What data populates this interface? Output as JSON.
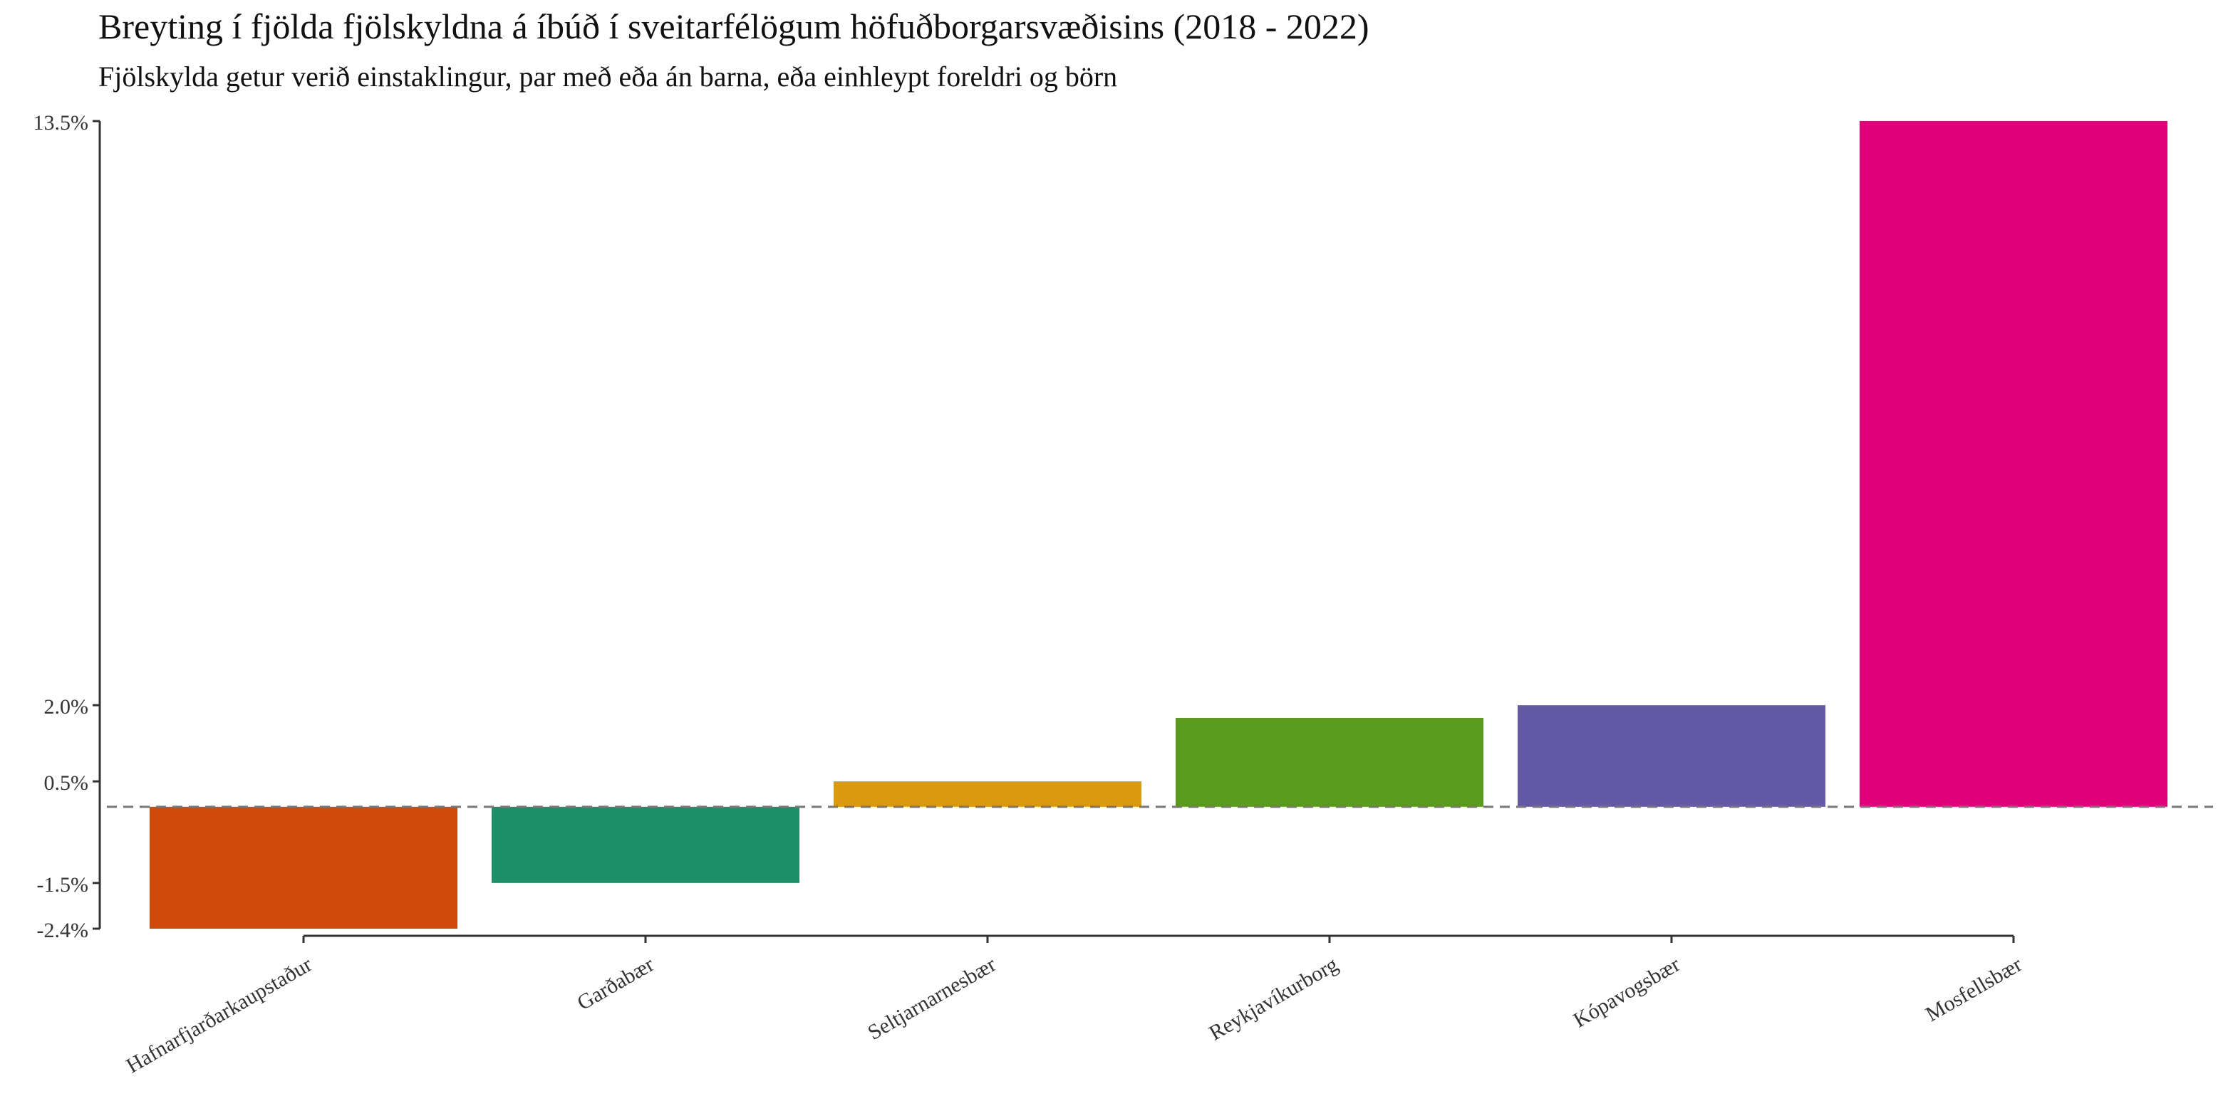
{
  "chart_data": {
    "type": "bar",
    "title": "Breyting í fjölda fjölskyldna á íbúð í sveitarfélögum höfuðborgarsvæðisins (2018 - 2022)",
    "subtitle": "Fjölskylda getur verið einstaklingur, par með eða án barna, eða einhleypt foreldri og börn",
    "xlabel": "",
    "ylabel": "",
    "categories": [
      "Hafnarfjarðarkaupstaður",
      "Garðabær",
      "Seltjarnarnesbær",
      "Reykjavíkurborg",
      "Kópavogsbær",
      "Mosfellsbær"
    ],
    "values": [
      -2.4,
      -1.5,
      0.5,
      1.75,
      2.0,
      13.5
    ],
    "colors": [
      "#D04A0B",
      "#1C8F68",
      "#DB9A0E",
      "#5A9A1D",
      "#6359A4",
      "#E0007A"
    ],
    "y_ticks": [
      -2.4,
      -1.5,
      0.5,
      2.0,
      13.5
    ],
    "y_tick_labels": [
      "-2.4%",
      "-1.5%",
      "0.5%",
      "2.0%",
      "13.5%"
    ],
    "ylim": [
      -2.4,
      13.5
    ],
    "reference_line": 0,
    "reference_line_style": "dashed",
    "reference_line_color": "#777777",
    "grid": false,
    "legend": "none"
  }
}
